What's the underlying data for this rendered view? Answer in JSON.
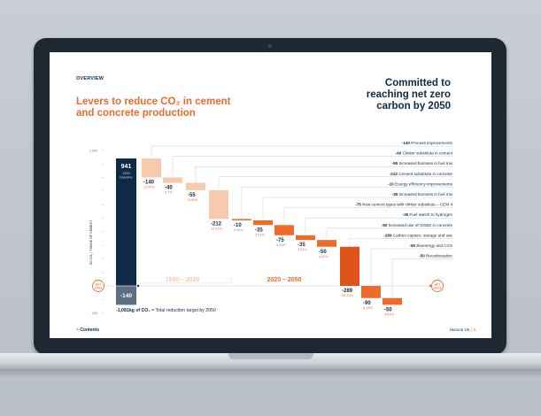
{
  "slide": {
    "section": "OVERVIEW",
    "title_lines": [
      "Levers to reduce CO₂ in cement",
      "and concrete production"
    ],
    "side_title_lines": [
      "Committed to",
      "reaching net zero",
      "carbon by 2050"
    ],
    "footer_left_arrow": ">",
    "footer_left": "Contents",
    "footer_right_brand": "Hanson UK",
    "footer_right_page": "5"
  },
  "colors": {
    "navy": "#0f2a44",
    "orange": "#ef6b2b",
    "peach": "#f7c9ad",
    "dark_orange": "#e0531b"
  },
  "chart_data": {
    "type": "waterfall",
    "ylabel": "KG CO₂ / TONNE OF CEMENT",
    "y_ticks": [
      "1,000",
      "0",
      "-200"
    ],
    "baseline": {
      "value": 941,
      "label": "941",
      "sub": "1990 baseline"
    },
    "residual": {
      "value": -140,
      "label": "-140"
    },
    "periods": [
      {
        "label": "1990 – 2020"
      },
      {
        "label": "2020 – 2050"
      }
    ],
    "net_zero_label": [
      "NET",
      "ZERO"
    ],
    "total_text": "-1,081kg of CO₂ = Total reduction target by 2050",
    "steps": [
      {
        "value": -140,
        "label": "-140",
        "pct": "12.95%",
        "name": "Process improvements",
        "period": 0
      },
      {
        "value": -40,
        "label": "-40",
        "pct": "3.7%",
        "name": "Clinker substitute in cement",
        "period": 0
      },
      {
        "value": -55,
        "label": "-55",
        "pct": "5.08%",
        "name": "Increased biomass in fuel mix",
        "period": 0
      },
      {
        "value": -212,
        "label": "-212",
        "pct": "19.61%",
        "name": "Cement substitute in concrete",
        "period": 0
      },
      {
        "value": -10,
        "label": "-10",
        "pct": "0.92%",
        "name": "Energy efficiency improvements",
        "period": 1
      },
      {
        "value": -35,
        "label": "-35",
        "pct": "3.23%",
        "name": "Increased biomass in fuel mix",
        "period": 1
      },
      {
        "value": -75,
        "label": "-75",
        "pct": "6.93%",
        "name": "New cement types with clinker substitute – CEM II",
        "period": 1
      },
      {
        "value": -35,
        "label": "-35",
        "pct": "3.23%",
        "name": "Fuel switch to hydrogen",
        "period": 1
      },
      {
        "value": -50,
        "label": "-50",
        "pct": "4.62%",
        "name": "Increased use of GGBS in concrete",
        "period": 1
      },
      {
        "value": -289,
        "label": "-289",
        "pct": "26.73%",
        "name": "Carbon capture, storage and use",
        "period": 1
      },
      {
        "value": -90,
        "label": "-90",
        "pct": "8.33%",
        "name": "Bioenergy and CCS",
        "period": 1
      },
      {
        "value": -50,
        "label": "-50",
        "pct": "4.63%",
        "name": "Recarbonation",
        "period": 1
      }
    ]
  }
}
